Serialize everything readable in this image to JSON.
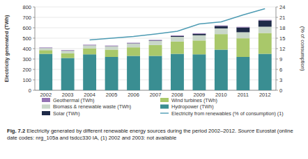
{
  "chart_data": {
    "type": "bar",
    "stacked": true,
    "grid": true,
    "legend": "bottom",
    "ylabel": "Electricity generated (TWh)",
    "y2label": "(% of consumption)",
    "categories": [
      "2002",
      "2003",
      "2004",
      "2005",
      "2006",
      "2007",
      "2008",
      "2009",
      "2010",
      "2011",
      "2012"
    ],
    "ylim": [
      0,
      800
    ],
    "yticks": [
      0,
      100,
      200,
      300,
      400,
      500,
      600,
      700,
      800
    ],
    "y2lim": [
      0,
      24
    ],
    "y2ticks": [
      0,
      3,
      6,
      9,
      12,
      15,
      18,
      21,
      24
    ],
    "series": [
      {
        "name": "Hydropower (TWh)",
        "color": "#3a8e92",
        "type": "bar",
        "values": [
          350,
          310,
          345,
          320,
          330,
          330,
          350,
          345,
          390,
          320,
          350
        ]
      },
      {
        "name": "Wind turbines (TWh)",
        "color": "#a9c86a",
        "type": "bar",
        "values": [
          35,
          44,
          58,
          70,
          82,
          104,
          118,
          133,
          149,
          179,
          200
        ]
      },
      {
        "name": "Biomass & renewable waste (TWh)",
        "color": "#c9d7c9",
        "type": "bar",
        "values": [
          20,
          25,
          28,
          32,
          36,
          40,
          45,
          50,
          55,
          58,
          60
        ]
      },
      {
        "name": "Solar (TWh)",
        "color": "#1e2a48",
        "type": "bar",
        "values": [
          0.3,
          0.5,
          0.7,
          1.5,
          2.5,
          3.8,
          7.4,
          14,
          23,
          46,
          60
        ]
      },
      {
        "name": "Geothermal (TWh)",
        "color": "#9474b4",
        "type": "bar",
        "values": [
          5.5,
          5.5,
          5.5,
          5.5,
          5.6,
          5.8,
          5.8,
          5.6,
          5.6,
          5.9,
          6
        ]
      },
      {
        "name": "Electricity from renewables (% of consumption) (1)",
        "color": "#4d9bb3",
        "type": "line",
        "axis": "y2",
        "values": [
          null,
          null,
          14.5,
          15,
          15.5,
          16.2,
          17,
          19.1,
          19.7,
          21.7,
          23.5
        ]
      }
    ],
    "annotations": [
      "Fig. 7.2",
      "Electricity generated by different renewable energy sources during the period 2002–2012.",
      "Source",
      "Eurostat (online date codes: nrg_105a and tsdcc330 IA, (1) 2002 and 2003: not available"
    ]
  }
}
